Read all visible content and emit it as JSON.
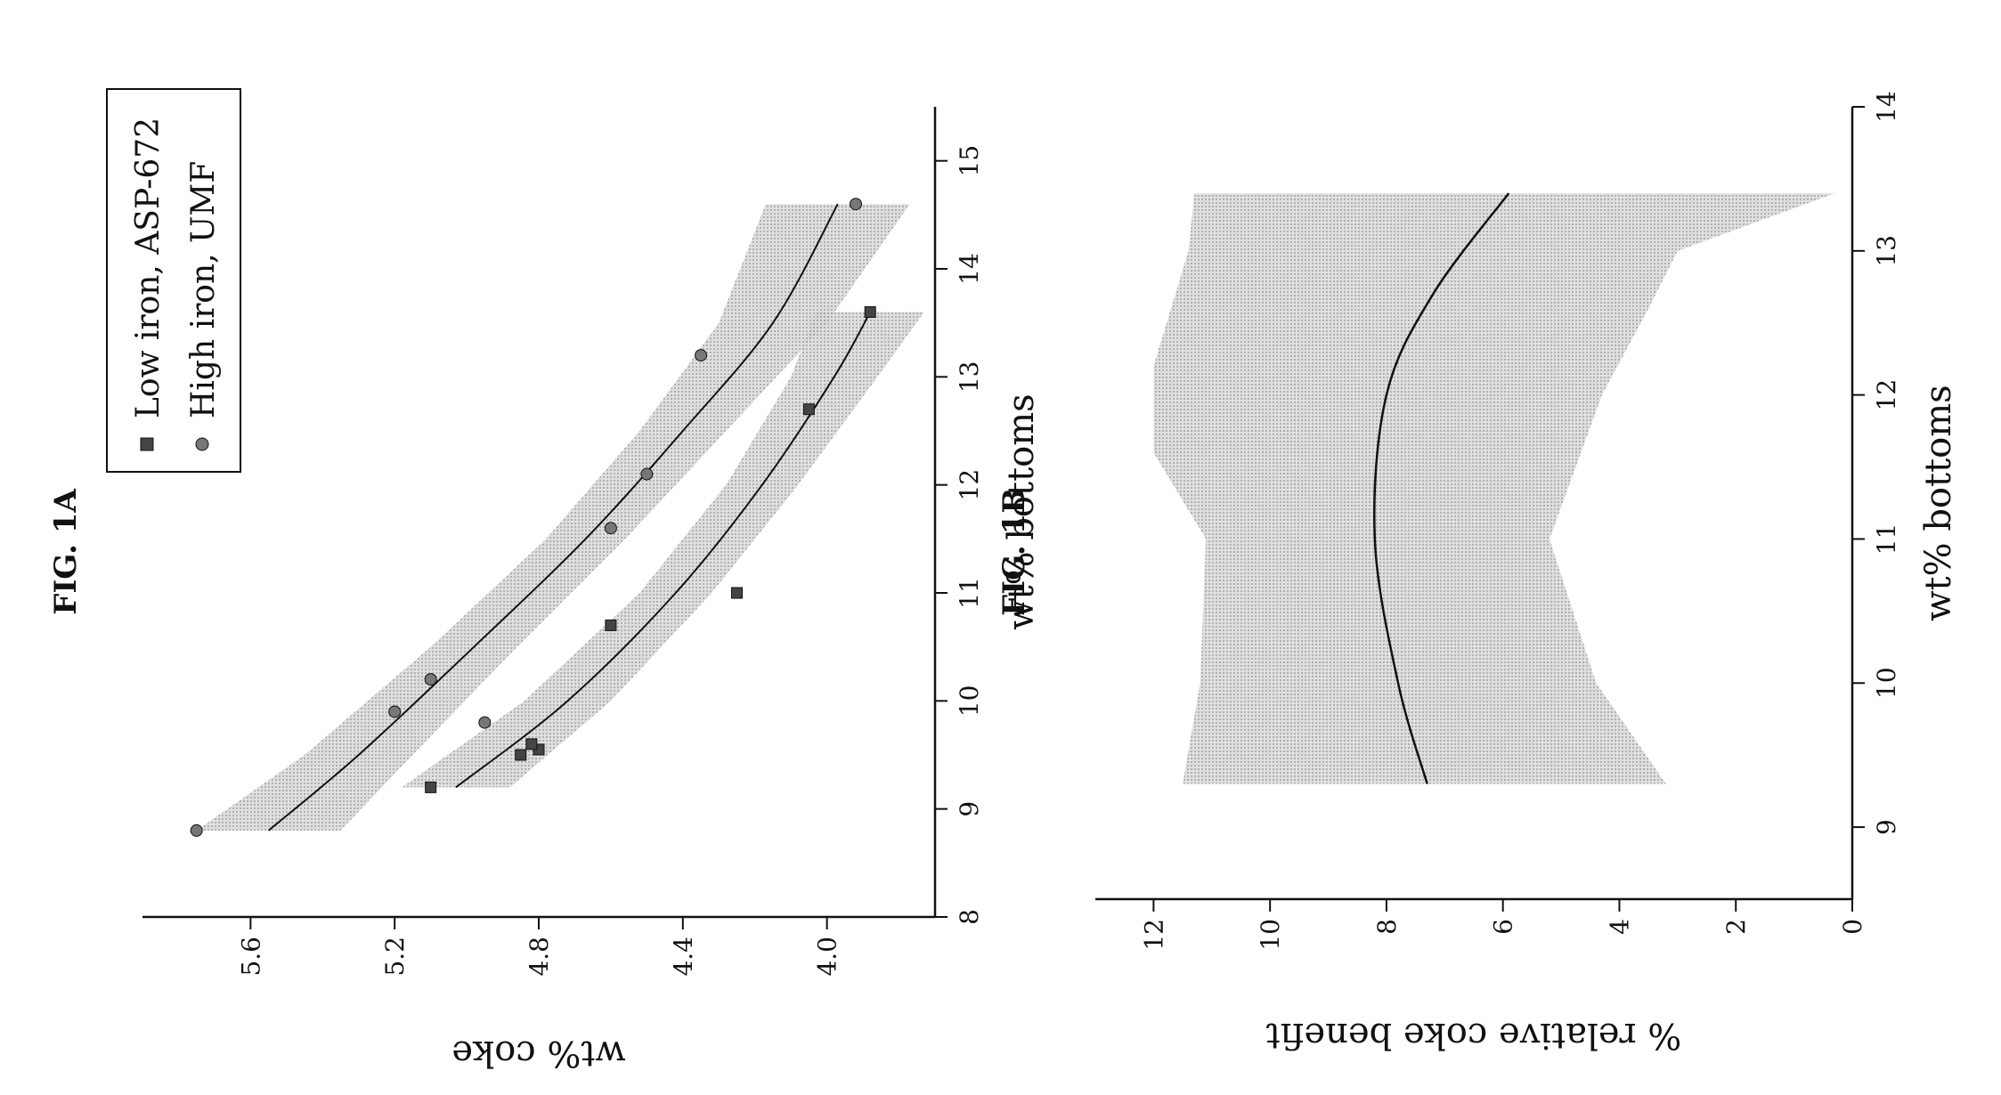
{
  "page": {
    "orientation": "rotated 90° counter-clockwise"
  },
  "colors": {
    "ink": "#111111",
    "band": "#bdbdbd",
    "band_light": "#d6d6d6"
  },
  "chart_data": [
    {
      "figure_label": "FIG. 1A",
      "type": "scatter",
      "xlabel": "wt% bottoms",
      "ylabel": "wt% coke",
      "xlim": [
        8,
        15.5
      ],
      "ylim": [
        3.7,
        5.9
      ],
      "xticks": [
        "8",
        "9",
        "10",
        "11",
        "12",
        "13",
        "14",
        "15"
      ],
      "yticks": [
        "4.0",
        "4.4",
        "4.8",
        "5.2",
        "5.6"
      ],
      "legend": {
        "position": "top-right",
        "entries": [
          "Low iron, ASP-672",
          "High iron, UMF"
        ]
      },
      "series": [
        {
          "name": "Low iron, ASP-672",
          "marker": "square",
          "points": [
            [
              9.2,
              5.1
            ],
            [
              9.5,
              4.85
            ],
            [
              9.55,
              4.8
            ],
            [
              9.6,
              4.82
            ],
            [
              10.7,
              4.6
            ],
            [
              11.0,
              4.25
            ],
            [
              12.7,
              4.05
            ],
            [
              13.6,
              3.88
            ]
          ],
          "fit": [
            [
              9.2,
              5.03
            ],
            [
              10.0,
              4.72
            ],
            [
              11.0,
              4.42
            ],
            [
              12.0,
              4.18
            ],
            [
              13.0,
              3.98
            ],
            [
              13.6,
              3.88
            ]
          ],
          "band_halfwidth": [
            0.15,
            0.12,
            0.1,
            0.1,
            0.12,
            0.15
          ]
        },
        {
          "name": "High iron, UMF",
          "marker": "circle",
          "points": [
            [
              8.8,
              5.75
            ],
            [
              9.9,
              5.2
            ],
            [
              10.2,
              5.1
            ],
            [
              9.8,
              4.95
            ],
            [
              11.6,
              4.6
            ],
            [
              12.1,
              4.5
            ],
            [
              13.2,
              4.35
            ],
            [
              14.6,
              3.92
            ]
          ],
          "fit": [
            [
              8.8,
              5.55
            ],
            [
              9.5,
              5.3
            ],
            [
              10.5,
              4.98
            ],
            [
              11.5,
              4.67
            ],
            [
              12.5,
              4.4
            ],
            [
              13.5,
              4.15
            ],
            [
              14.6,
              3.97
            ]
          ],
          "band_halfwidth": [
            0.2,
            0.15,
            0.12,
            0.11,
            0.12,
            0.15,
            0.2
          ]
        }
      ]
    },
    {
      "figure_label": "FIG. 1B",
      "type": "line",
      "xlabel": "wt% bottoms",
      "ylabel": "% relative coke benefit",
      "xlim": [
        8.5,
        14
      ],
      "ylim": [
        0,
        13
      ],
      "xticks": [
        "9",
        "10",
        "11",
        "12",
        "13",
        "14"
      ],
      "yticks": [
        "0",
        "2",
        "4",
        "6",
        "8",
        "10",
        "12"
      ],
      "series": [
        {
          "name": "",
          "points": [
            [
              9.3,
              7.3
            ],
            [
              10.0,
              7.8
            ],
            [
              11.0,
              8.2
            ],
            [
              12.0,
              8.0
            ],
            [
              12.7,
              7.2
            ],
            [
              13.4,
              5.9
            ]
          ],
          "band_upper": [
            [
              9.3,
              11.5
            ],
            [
              10.0,
              11.2
            ],
            [
              11.0,
              11.1
            ],
            [
              11.6,
              12.0
            ],
            [
              12.2,
              12.0
            ],
            [
              13.0,
              11.4
            ],
            [
              13.4,
              11.3
            ]
          ],
          "band_lower": [
            [
              9.3,
              3.2
            ],
            [
              10.0,
              4.4
            ],
            [
              11.0,
              5.2
            ],
            [
              12.0,
              4.3
            ],
            [
              12.6,
              3.5
            ],
            [
              13.0,
              3.0
            ],
            [
              13.4,
              0.3
            ]
          ]
        }
      ]
    }
  ]
}
